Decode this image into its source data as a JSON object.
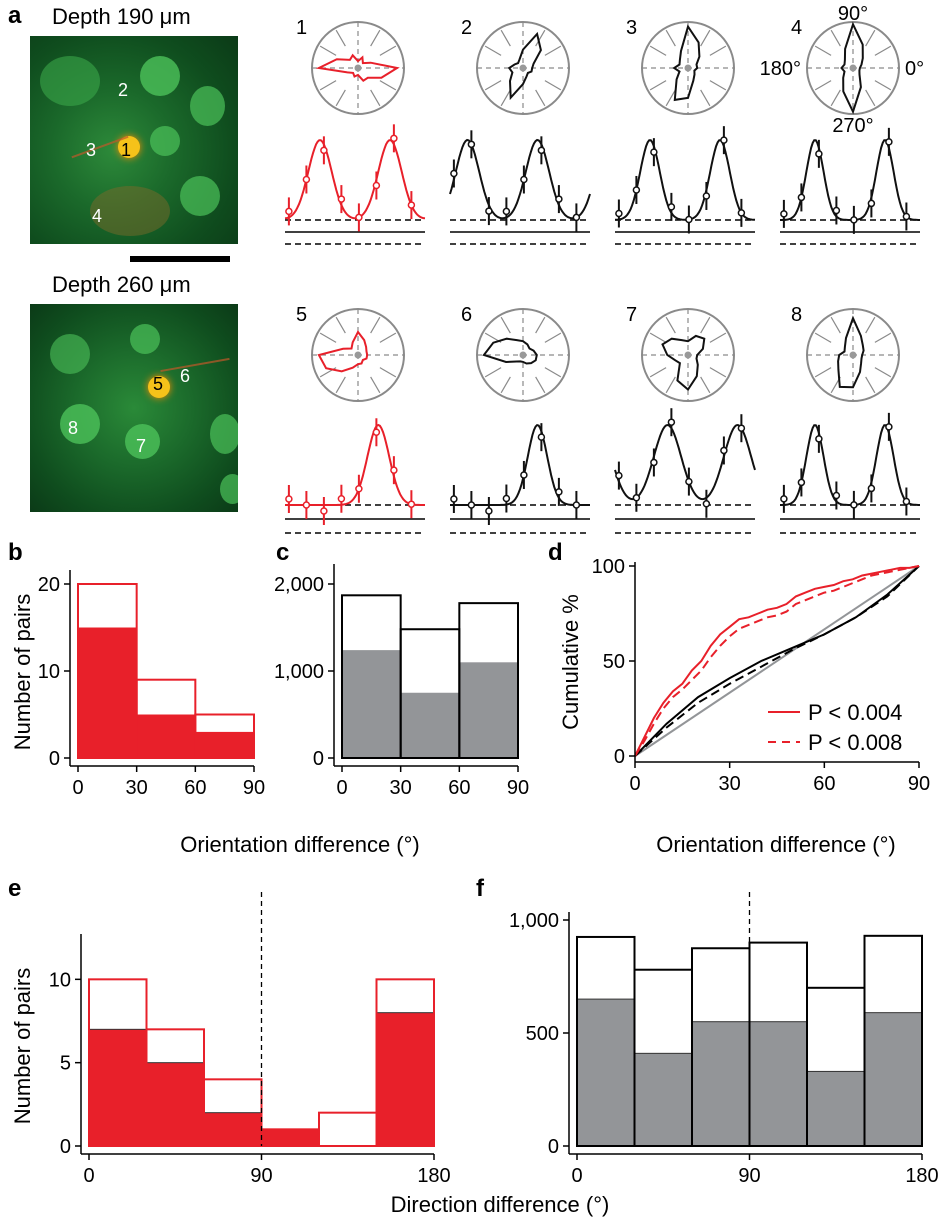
{
  "panel_letters": {
    "a": "a",
    "b": "b",
    "c": "c",
    "d": "d",
    "e": "e",
    "f": "f"
  },
  "images": [
    {
      "caption": "Depth 190 μm",
      "cells": [
        "2",
        "3",
        "1",
        "4"
      ],
      "highlight": "1"
    },
    {
      "caption": "Depth 260 μm",
      "cells": [
        "5",
        "6",
        "8",
        "7"
      ],
      "highlight": "5"
    }
  ],
  "polar_angle_labels": {
    "top": "90°",
    "left": "180°",
    "right": "0°",
    "bottom": "270°"
  },
  "cell_panels": [
    {
      "id": "1",
      "color": "#e8202a",
      "polar": [
        0.85,
        0.3,
        0.15,
        0.25,
        0.15,
        0.3,
        0.25,
        0.5,
        0.85,
        0.25,
        0.15,
        0.2,
        0.15,
        0.3,
        0.3,
        0.55
      ],
      "curve_peaks": [
        90,
        270
      ],
      "curve_width": 30
    },
    {
      "id": "2",
      "color": "#111111",
      "polar": [
        0.2,
        0.25,
        0.55,
        0.8,
        0.4,
        0.2,
        0.15,
        0.2,
        0.3,
        0.25,
        0.4,
        0.7,
        0.35,
        0.2,
        0.15,
        0.2
      ],
      "curve_peaks": [
        45,
        225
      ],
      "curve_width": 30
    },
    {
      "id": "3",
      "color": "#111111",
      "polar": [
        0.2,
        0.2,
        0.35,
        0.6,
        0.9,
        0.4,
        0.25,
        0.2,
        0.3,
        0.2,
        0.35,
        0.75,
        0.65,
        0.3,
        0.2,
        0.15
      ],
      "curve_peaks": [
        90,
        270
      ],
      "curve_width": 25
    },
    {
      "id": "4",
      "color": "#111111",
      "polar": [
        0.15,
        0.2,
        0.3,
        0.55,
        0.95,
        0.45,
        0.25,
        0.2,
        0.25,
        0.2,
        0.3,
        0.55,
        0.95,
        0.45,
        0.2,
        0.15
      ],
      "curve_peaks": [
        90,
        270
      ],
      "curve_width": 22
    },
    {
      "id": "5",
      "color": "#e8202a",
      "polar": [
        0.2,
        0.2,
        0.25,
        0.35,
        0.5,
        0.3,
        0.2,
        0.35,
        0.85,
        0.75,
        0.5,
        0.3,
        0.2,
        0.2,
        0.15,
        0.2
      ],
      "curve_peaks": [
        240
      ],
      "curve_width": 28
    },
    {
      "id": "6",
      "color": "#111111",
      "polar": [
        0.3,
        0.25,
        0.2,
        0.25,
        0.3,
        0.35,
        0.5,
        0.7,
        0.85,
        0.4,
        0.2,
        0.15,
        0.15,
        0.2,
        0.25,
        0.3
      ],
      "curve_peaks": [
        225
      ],
      "curve_width": 25
    },
    {
      "id": "7",
      "color": "#111111",
      "polar": [
        0.2,
        0.35,
        0.5,
        0.45,
        0.3,
        0.35,
        0.5,
        0.6,
        0.45,
        0.3,
        0.25,
        0.6,
        0.75,
        0.5,
        0.3,
        0.2
      ],
      "curve_peaks": [
        135,
        315
      ],
      "curve_width": 35
    },
    {
      "id": "8",
      "color": "#111111",
      "polar": [
        0.2,
        0.25,
        0.3,
        0.45,
        0.8,
        0.4,
        0.25,
        0.2,
        0.3,
        0.35,
        0.45,
        0.75,
        0.7,
        0.4,
        0.25,
        0.2
      ],
      "curve_peaks": [
        90,
        270
      ],
      "curve_width": 22
    }
  ],
  "chart_data": [
    {
      "panel": "b",
      "type": "bar",
      "categories": [
        "0-30",
        "30-60",
        "60-90"
      ],
      "series": [
        {
          "values": [
            20,
            9,
            5
          ]
        },
        {
          "values": [
            15,
            5,
            3
          ]
        }
      ],
      "ylabel": "Number of pairs",
      "xlabel": "Orientation difference (°)",
      "ylim": [
        0,
        20
      ],
      "yticks": [
        "0",
        "10",
        "20"
      ],
      "xticks": [
        "0",
        "30",
        "60",
        "90"
      ],
      "colors": {
        "outline": "#e8202a",
        "fill": "#e8202a"
      }
    },
    {
      "panel": "c",
      "type": "bar",
      "categories": [
        "0-30",
        "30-60",
        "60-90"
      ],
      "series": [
        {
          "values": [
            1870,
            1480,
            1780
          ]
        },
        {
          "values": [
            1240,
            750,
            1100
          ]
        }
      ],
      "ylim": [
        0,
        2000
      ],
      "yticks": [
        "0",
        "1,000",
        "2,000"
      ],
      "xticks": [
        "0",
        "30",
        "60",
        "90"
      ],
      "colors": {
        "outline": "#000000",
        "fill": "#939598"
      }
    },
    {
      "panel": "d",
      "type": "line",
      "ylabel": "Cumulative %",
      "xlabel": "Orientation difference (°)",
      "xlim": [
        0,
        90
      ],
      "ylim": [
        0,
        100
      ],
      "xticks": [
        "0",
        "30",
        "60",
        "90"
      ],
      "yticks": [
        "0",
        "50",
        "100"
      ],
      "legend_placement": "right",
      "series": [
        {
          "name": "P < 0.004",
          "color": "#e8202a",
          "dash": "solid",
          "x": [
            0,
            3,
            6,
            9,
            12,
            15,
            18,
            21,
            24,
            27,
            30,
            33,
            36,
            39,
            42,
            45,
            48,
            51,
            54,
            57,
            60,
            63,
            66,
            69,
            72,
            75,
            78,
            81,
            84,
            87,
            90
          ],
          "y": [
            0,
            10,
            20,
            28,
            34,
            38,
            45,
            50,
            58,
            64,
            68,
            72,
            73,
            75,
            77,
            78,
            80,
            84,
            86,
            88,
            89,
            90,
            92,
            93,
            95,
            96,
            97,
            98,
            99,
            99,
            100
          ]
        },
        {
          "name": "P < 0.008",
          "color": "#e8202a",
          "dash": "dashed",
          "x": [
            0,
            3,
            6,
            9,
            12,
            15,
            18,
            21,
            24,
            27,
            30,
            33,
            36,
            39,
            42,
            45,
            48,
            51,
            54,
            57,
            60,
            63,
            66,
            69,
            72,
            75,
            78,
            81,
            84,
            87,
            90
          ],
          "y": [
            0,
            8,
            17,
            25,
            31,
            35,
            40,
            45,
            52,
            58,
            63,
            67,
            69,
            71,
            73,
            74,
            76,
            80,
            82,
            84,
            86,
            87,
            89,
            91,
            93,
            95,
            96,
            97,
            98,
            99,
            100
          ]
        },
        {
          "name": "",
          "color": "#000000",
          "dash": "solid",
          "x": [
            0,
            10,
            20,
            30,
            40,
            50,
            60,
            70,
            80,
            90
          ],
          "y": [
            0,
            17,
            31,
            41,
            50,
            57,
            64,
            73,
            85,
            100
          ]
        },
        {
          "name": "",
          "color": "#000000",
          "dash": "dashed",
          "x": [
            0,
            10,
            20,
            30,
            40,
            50,
            60,
            70,
            80,
            90
          ],
          "y": [
            0,
            15,
            28,
            38,
            47,
            56,
            64,
            73,
            84,
            100
          ]
        },
        {
          "name": "",
          "color": "#939598",
          "dash": "solid",
          "x": [
            0,
            90
          ],
          "y": [
            0,
            100
          ]
        }
      ]
    },
    {
      "panel": "e",
      "type": "bar",
      "categories": [
        "0-30",
        "30-60",
        "60-90",
        "90-120",
        "120-150",
        "150-180"
      ],
      "series": [
        {
          "values": [
            10,
            7,
            4,
            1,
            2,
            10
          ]
        },
        {
          "values": [
            7,
            5,
            2,
            1,
            0,
            8
          ]
        }
      ],
      "ylabel": "Number of pairs",
      "ylim": [
        0,
        12
      ],
      "yticks": [
        "0",
        "5",
        "10"
      ],
      "xticks": [
        "0",
        "90",
        "180"
      ],
      "vline": 90,
      "colors": {
        "outline": "#e8202a",
        "fill": "#e8202a"
      }
    },
    {
      "panel": "f",
      "type": "bar",
      "categories": [
        "0-30",
        "30-60",
        "60-90",
        "90-120",
        "120-150",
        "150-180"
      ],
      "series": [
        {
          "values": [
            925,
            780,
            875,
            900,
            700,
            930
          ]
        },
        {
          "values": [
            650,
            410,
            550,
            550,
            330,
            590
          ]
        }
      ],
      "ylim": [
        0,
        1000
      ],
      "yticks": [
        "0",
        "500",
        "1,000"
      ],
      "xticks": [
        "0",
        "90",
        "180"
      ],
      "vline": 90,
      "xlabel": "Direction difference (°)",
      "colors": {
        "outline": "#000000",
        "fill": "#939598"
      }
    }
  ]
}
